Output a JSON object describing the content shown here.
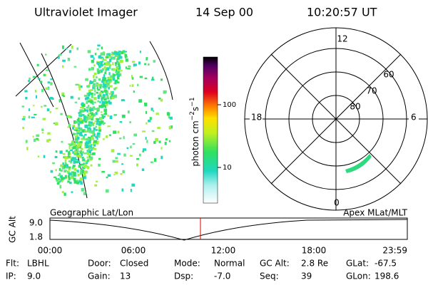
{
  "header": {
    "title": "Ultraviolet Imager",
    "date": "14 Sep 00",
    "time": "10:20:57 UT"
  },
  "colorbar": {
    "label": {
      "base": "photon cm",
      "exp1": "−2",
      "unit": "s",
      "exp2": "−1"
    },
    "ticks": [
      100,
      10
    ]
  },
  "polar": {
    "mlt_labels": [
      12,
      18,
      6,
      0
    ],
    "lat_labels": [
      60,
      70,
      80
    ]
  },
  "strip": {
    "left_label": "Geographic Lat/Lon",
    "right_label": "Apex  MLat/MLT",
    "y_label": "GC Alt",
    "y_ticks": [
      "9.0",
      "1.8"
    ],
    "x_ticks": [
      "00:00",
      "06:00",
      "12:00",
      "18:00",
      "23:59"
    ]
  },
  "footer": {
    "rows": [
      [
        [
          "Flt:",
          "LBHL"
        ],
        [
          "Door:",
          "Closed"
        ],
        [
          "Mode:",
          "Normal"
        ],
        [
          "GC Alt:",
          "2.8 Re"
        ],
        [
          "GLat:",
          "-67.5"
        ]
      ],
      [
        [
          "IP:",
          "9.0"
        ],
        [
          "Gain:",
          "13"
        ],
        [
          "Dsp:",
          "-7.0"
        ],
        [
          "Seq:",
          "39"
        ],
        [
          "GLon:",
          "198.6"
        ]
      ]
    ]
  }
}
